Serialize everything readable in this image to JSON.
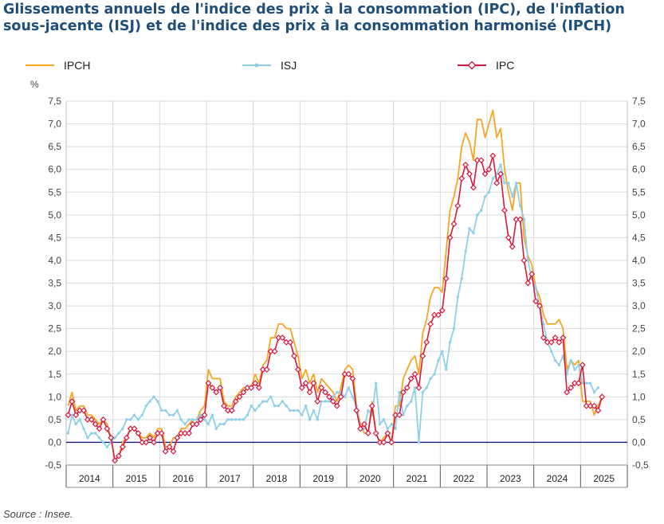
{
  "title": "Glissements annuels de l'indice des prix à la consommation (IPC), de l'inflation sous-jacente (ISJ) et de l'indice des prix à la consommation harmonisé (IPCH)",
  "source": "Source : Insee.",
  "legend": [
    {
      "name": "IPCH",
      "color": "#f5a623",
      "marker": "none"
    },
    {
      "name": "ISJ",
      "color": "#8fd0e8",
      "marker": "circle"
    },
    {
      "name": "IPC",
      "color": "#d7193f",
      "marker": "diamond"
    }
  ],
  "chart_data": {
    "type": "line",
    "title": "Glissements annuels de l'indice des prix à la consommation (IPC), de l'inflation sous-jacente (ISJ) et de l'indice des prix à la consommation harmonisé (IPCH)",
    "ylabel": "%",
    "xlabel": "",
    "ylim": [
      -0.5,
      7.5
    ],
    "ytick_labels": [
      "-0,5",
      "0,0",
      "0,5",
      "1,0",
      "1,5",
      "2,0",
      "2,5",
      "3,0",
      "3,5",
      "4,0",
      "4,5",
      "5,0",
      "5,5",
      "6,0",
      "6,5",
      "7,0",
      "7,5"
    ],
    "years": [
      "2014",
      "2015",
      "2016",
      "2017",
      "2018",
      "2019",
      "2020",
      "2021",
      "2022",
      "2023",
      "2024",
      "2025"
    ],
    "x_start": "2014-01",
    "months": 137,
    "grid": true,
    "series": [
      {
        "name": "IPCH",
        "color": "#f5a623",
        "values": [
          0.8,
          1.1,
          0.7,
          0.8,
          0.8,
          0.6,
          0.6,
          0.5,
          0.4,
          0.5,
          0.4,
          0.1,
          -0.4,
          -0.3,
          0.0,
          0.1,
          0.3,
          0.3,
          0.2,
          0.1,
          0.1,
          0.2,
          0.1,
          0.3,
          0.3,
          -0.1,
          -0.1,
          0.1,
          0.1,
          0.3,
          0.3,
          0.4,
          0.5,
          0.5,
          0.7,
          0.8,
          1.6,
          1.4,
          1.4,
          1.4,
          0.9,
          0.8,
          0.8,
          1.0,
          1.1,
          1.2,
          1.2,
          1.2,
          1.5,
          1.3,
          1.7,
          1.8,
          2.3,
          2.3,
          2.6,
          2.6,
          2.5,
          2.5,
          2.2,
          1.9,
          1.4,
          1.6,
          1.3,
          1.5,
          1.1,
          1.4,
          1.3,
          1.2,
          1.1,
          0.9,
          1.2,
          1.6,
          1.7,
          1.6,
          0.8,
          0.4,
          0.2,
          0.2,
          0.9,
          0.2,
          0.0,
          0.1,
          0.2,
          0.0,
          0.8,
          0.8,
          1.4,
          1.6,
          1.8,
          1.9,
          1.5,
          2.4,
          2.7,
          3.2,
          3.4,
          3.4,
          3.3,
          4.2,
          5.1,
          5.4,
          5.8,
          6.5,
          6.8,
          6.6,
          6.2,
          7.1,
          7.1,
          6.7,
          7.0,
          7.3,
          6.7,
          6.9,
          6.0,
          5.5,
          5.1,
          5.7,
          5.7,
          4.5,
          4.1,
          3.9,
          3.4,
          3.2,
          2.8,
          2.6,
          2.6,
          2.6,
          2.7,
          2.5,
          1.6,
          1.8,
          1.7,
          1.8,
          0.9,
          0.9,
          0.9,
          0.6,
          0.8,
          1.0
        ]
      },
      {
        "name": "ISJ",
        "color": "#8fd0e8",
        "values": [
          0.2,
          0.6,
          0.4,
          0.5,
          0.3,
          0.1,
          0.2,
          0.2,
          0.1,
          0.0,
          -0.1,
          0.0,
          0.1,
          0.2,
          0.3,
          0.5,
          0.5,
          0.6,
          0.5,
          0.6,
          0.8,
          0.9,
          1.0,
          0.9,
          0.7,
          0.7,
          0.6,
          0.6,
          0.7,
          0.5,
          0.4,
          0.5,
          0.5,
          0.5,
          0.6,
          0.5,
          0.4,
          0.6,
          0.3,
          0.4,
          0.4,
          0.5,
          0.5,
          0.5,
          0.5,
          0.5,
          0.6,
          0.8,
          0.7,
          0.8,
          0.9,
          0.9,
          1.0,
          0.8,
          0.8,
          0.9,
          0.8,
          0.7,
          0.7,
          0.7,
          0.6,
          0.8,
          0.5,
          0.7,
          0.5,
          0.9,
          0.9,
          0.9,
          1.0,
          1.1,
          1.1,
          1.0,
          1.2,
          1.0,
          0.8,
          0.3,
          0.3,
          0.7,
          0.6,
          1.3,
          0.4,
          0.5,
          0.3,
          0.4,
          0.3,
          1.1,
          0.6,
          0.8,
          0.9,
          1.2,
          0.0,
          1.1,
          1.2,
          1.4,
          1.5,
          1.8,
          2.0,
          1.6,
          2.2,
          2.5,
          3.2,
          3.6,
          4.2,
          4.7,
          4.6,
          5.0,
          5.1,
          5.4,
          5.5,
          5.8,
          5.9,
          6.1,
          5.7,
          5.7,
          5.4,
          5.7,
          5.2,
          4.9,
          4.0,
          3.6,
          3.4,
          3.0,
          2.6,
          2.2,
          2.0,
          1.8,
          1.7,
          1.9,
          1.5,
          1.8,
          1.6,
          1.7,
          1.3,
          1.3,
          1.3,
          1.1,
          1.2
        ]
      },
      {
        "name": "IPC",
        "color": "#d7193f",
        "values": [
          0.6,
          0.9,
          0.6,
          0.7,
          0.7,
          0.5,
          0.5,
          0.4,
          0.3,
          0.5,
          0.3,
          0.1,
          -0.4,
          -0.3,
          -0.1,
          0.1,
          0.3,
          0.3,
          0.2,
          0.0,
          0.0,
          0.1,
          0.0,
          0.2,
          0.2,
          -0.2,
          -0.1,
          -0.2,
          0.1,
          0.2,
          0.2,
          0.2,
          0.4,
          0.4,
          0.5,
          0.6,
          1.3,
          1.2,
          1.1,
          1.2,
          0.8,
          0.7,
          0.7,
          0.9,
          1.0,
          1.1,
          1.2,
          1.2,
          1.3,
          1.2,
          1.6,
          1.6,
          2.0,
          2.0,
          2.3,
          2.3,
          2.2,
          2.2,
          1.9,
          1.6,
          1.2,
          1.3,
          1.1,
          1.3,
          0.9,
          1.2,
          1.1,
          1.0,
          0.9,
          0.8,
          1.0,
          1.5,
          1.5,
          1.4,
          0.7,
          0.3,
          0.4,
          0.2,
          0.8,
          0.2,
          0.0,
          0.0,
          0.2,
          0.0,
          0.6,
          0.6,
          1.1,
          1.2,
          1.4,
          1.5,
          1.2,
          1.9,
          2.2,
          2.6,
          2.8,
          2.8,
          2.9,
          3.6,
          4.5,
          4.8,
          5.2,
          5.8,
          6.1,
          5.9,
          5.6,
          6.2,
          6.2,
          5.9,
          6.0,
          6.3,
          5.7,
          5.9,
          5.1,
          4.5,
          4.3,
          4.9,
          4.9,
          4.0,
          3.5,
          3.7,
          3.1,
          3.0,
          2.3,
          2.2,
          2.2,
          2.3,
          2.2,
          2.3,
          1.1,
          1.2,
          1.3,
          1.3,
          1.7,
          0.8,
          0.8,
          0.8,
          0.7,
          1.0
        ]
      }
    ]
  }
}
